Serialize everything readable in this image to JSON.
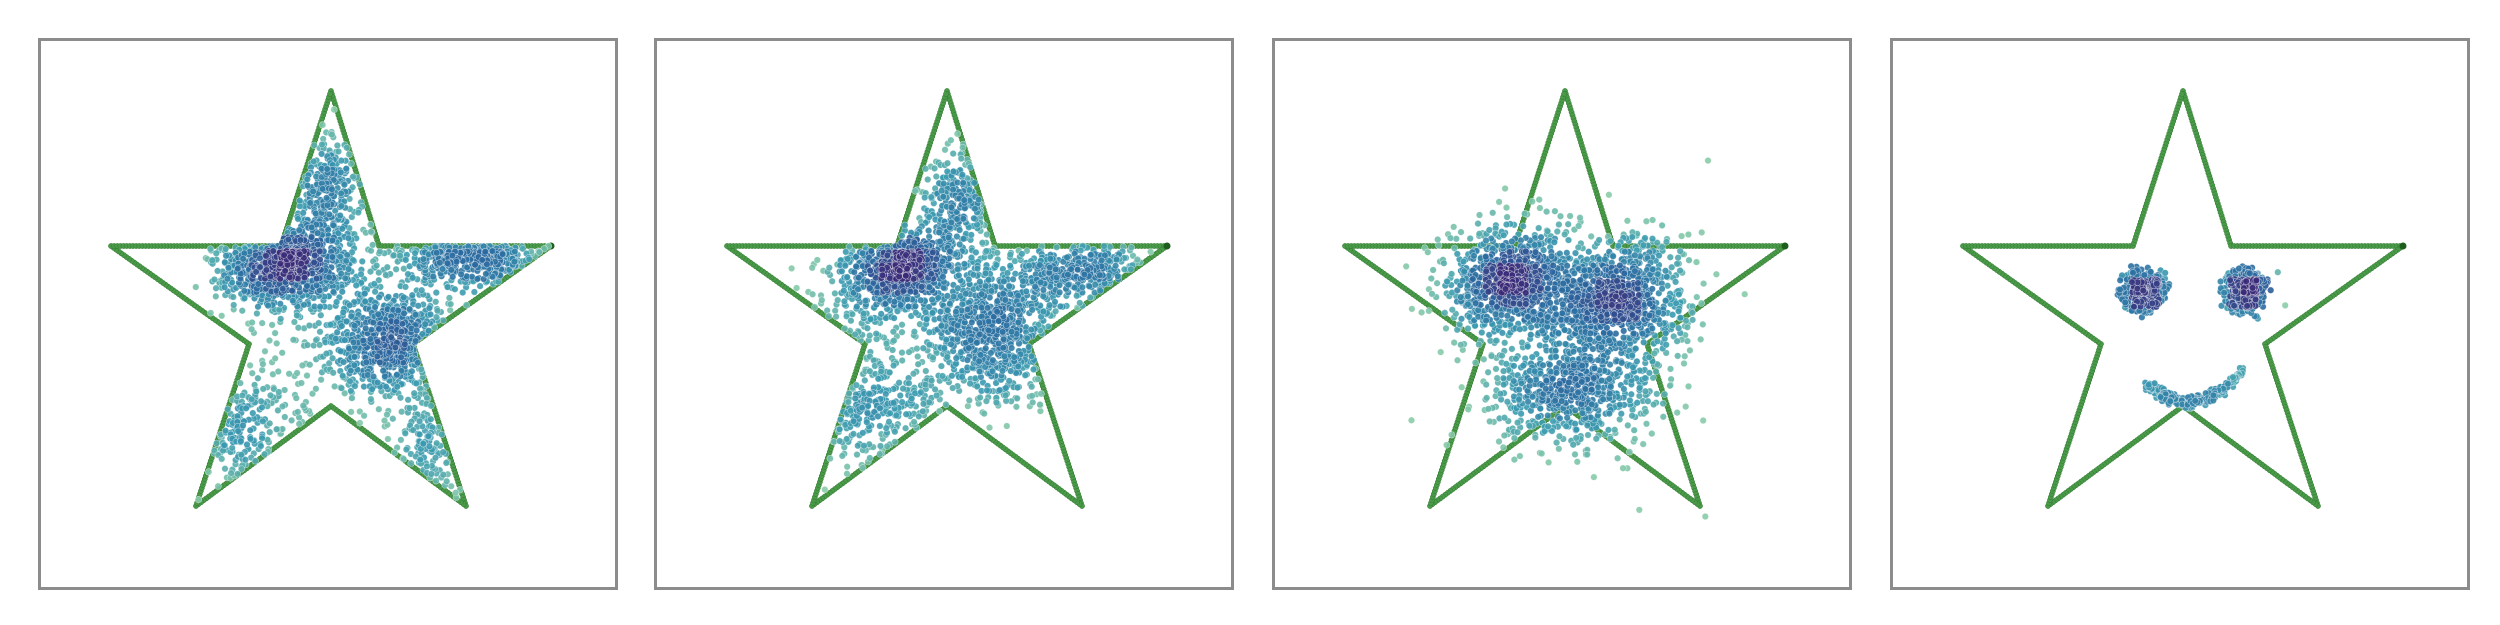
{
  "panels": [
    {
      "id": "panel-1",
      "distribution": "scattered-fill",
      "clusters": 3
    },
    {
      "id": "panel-2",
      "distribution": "blob-fill",
      "clusters": 3
    },
    {
      "id": "panel-3",
      "distribution": "three-clusters",
      "clusters": 3
    },
    {
      "id": "panel-4",
      "distribution": "smiley-face",
      "clusters": 3
    }
  ],
  "colors": {
    "star_outline": "#4a9a4a",
    "star_outline_dark": "#1d5e1d",
    "density_low": "#8fd0a8",
    "density_mid": "#3a9ab0",
    "density_high": "#2a6aa0",
    "density_peak": "#3a2a78",
    "frame": "#8c8c8c"
  }
}
